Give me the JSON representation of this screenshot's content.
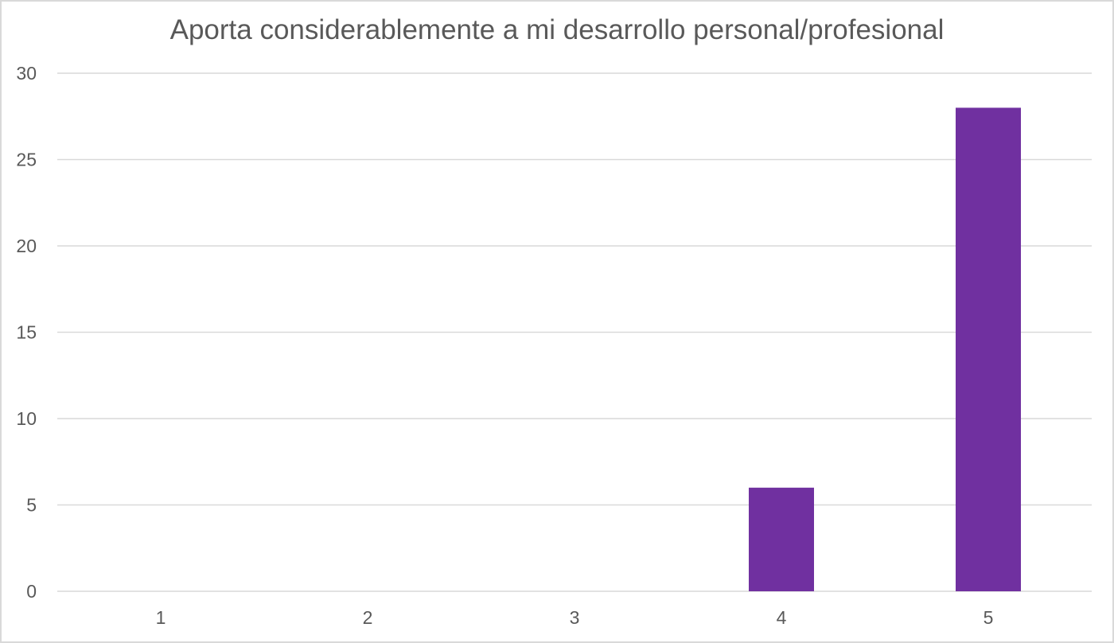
{
  "chart_data": {
    "type": "bar",
    "title": "Aporta considerablemente a mi desarrollo personal/profesional",
    "categories": [
      "1",
      "2",
      "3",
      "4",
      "5"
    ],
    "values": [
      0,
      0,
      0,
      6,
      28
    ],
    "ylim": [
      0,
      30
    ],
    "yticks": [
      0,
      5,
      10,
      15,
      20,
      25,
      30
    ],
    "xlabel": "",
    "ylabel": "",
    "grid": true,
    "legend": "none",
    "bar_color": "#7030a0",
    "gridline_color": "#d9d9d9",
    "text_color": "#595959"
  }
}
